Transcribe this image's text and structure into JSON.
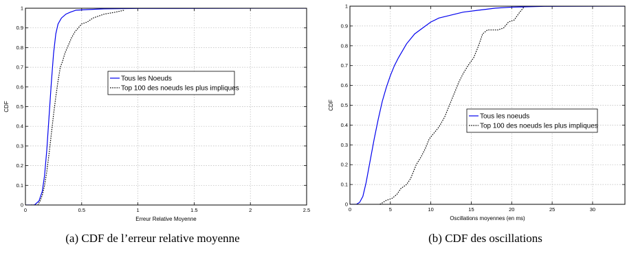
{
  "chart_data": [
    {
      "type": "line",
      "panel": "a",
      "title": "",
      "caption": "(a)  CDF de l’erreur relative moyenne",
      "xlabel": "Erreur Relative Moyenne",
      "ylabel": "CDF",
      "xlim": [
        0,
        2.5
      ],
      "ylim": [
        0,
        1
      ],
      "xticks": [
        "0",
        "0.5",
        "1",
        "1.5",
        "2",
        "2.5"
      ],
      "yticks": [
        "0",
        "0.1",
        "0.2",
        "0.3",
        "0.4",
        "0.5",
        "0.6",
        "0.7",
        "0.8",
        "0.9",
        "1"
      ],
      "grid": true,
      "legend_position": "center",
      "series": [
        {
          "name": "Tous les Noeuds",
          "color": "#0000ee",
          "style": "solid",
          "x": [
            0,
            0.08,
            0.12,
            0.15,
            0.17,
            0.19,
            0.21,
            0.23,
            0.25,
            0.27,
            0.29,
            0.32,
            0.36,
            0.4,
            0.45,
            0.55,
            0.7,
            1.0,
            2.5
          ],
          "y": [
            0,
            0.0,
            0.02,
            0.07,
            0.15,
            0.28,
            0.45,
            0.62,
            0.77,
            0.87,
            0.92,
            0.95,
            0.97,
            0.98,
            0.99,
            0.993,
            0.997,
            0.999,
            1.0
          ]
        },
        {
          "name": "Top 100 des noeuds les plus impliques",
          "color": "#000000",
          "style": "dotted",
          "x": [
            0.05,
            0.11,
            0.13,
            0.15,
            0.17,
            0.19,
            0.21,
            0.23,
            0.25,
            0.27,
            0.29,
            0.31,
            0.33,
            0.35,
            0.38,
            0.41,
            0.44,
            0.47,
            0.5,
            0.55,
            0.6,
            0.65,
            0.7,
            0.8,
            0.88
          ],
          "y": [
            0,
            0.0,
            0.02,
            0.05,
            0.1,
            0.17,
            0.26,
            0.36,
            0.46,
            0.55,
            0.63,
            0.7,
            0.73,
            0.77,
            0.81,
            0.85,
            0.88,
            0.9,
            0.92,
            0.93,
            0.95,
            0.96,
            0.97,
            0.98,
            0.99
          ]
        }
      ]
    },
    {
      "type": "line",
      "panel": "b",
      "title": "",
      "caption": "(b)  CDF des oscillations",
      "xlabel": "Oscillations moyennes (en ms)",
      "ylabel": "CDF",
      "xlim": [
        0,
        34
      ],
      "ylim": [
        0,
        1
      ],
      "xticks": [
        "0",
        "5",
        "10",
        "15",
        "20",
        "25",
        "30"
      ],
      "yticks": [
        "0",
        "0.1",
        "0.2",
        "0.3",
        "0.4",
        "0.5",
        "0.6",
        "0.7",
        "0.8",
        "0.9",
        "1"
      ],
      "grid": true,
      "legend_position": "center-right",
      "series": [
        {
          "name": "Tous les noeuds",
          "color": "#0000ee",
          "style": "solid",
          "x": [
            0,
            0.8,
            1.2,
            1.6,
            2.0,
            2.5,
            3.0,
            3.5,
            4.0,
            4.5,
            5.0,
            5.5,
            6.0,
            7.0,
            8.0,
            9.0,
            10.0,
            11.0,
            12.0,
            14.0,
            16.0,
            18.0,
            20.0,
            24.0,
            34.0
          ],
          "y": [
            0,
            0.0,
            0.01,
            0.04,
            0.11,
            0.22,
            0.33,
            0.43,
            0.52,
            0.59,
            0.65,
            0.7,
            0.74,
            0.81,
            0.86,
            0.89,
            0.92,
            0.94,
            0.95,
            0.97,
            0.98,
            0.99,
            0.995,
            0.999,
            1.0
          ]
        },
        {
          "name": "Top 100 des noeuds les plus impliques",
          "color": "#000000",
          "style": "dotted",
          "x": [
            3.7,
            4.5,
            5.2,
            5.8,
            6.3,
            7.0,
            7.5,
            8.2,
            8.8,
            9.3,
            9.8,
            10.4,
            11.0,
            11.7,
            12.3,
            12.9,
            13.5,
            14.0,
            14.6,
            15.3,
            15.9,
            16.4,
            17.0,
            17.7,
            18.3,
            19.0,
            19.6,
            20.3,
            21.0,
            21.6
          ],
          "y": [
            0,
            0.02,
            0.03,
            0.05,
            0.08,
            0.1,
            0.13,
            0.2,
            0.24,
            0.28,
            0.33,
            0.36,
            0.39,
            0.44,
            0.5,
            0.56,
            0.62,
            0.66,
            0.7,
            0.74,
            0.8,
            0.86,
            0.88,
            0.88,
            0.88,
            0.89,
            0.92,
            0.93,
            0.97,
            1.0
          ]
        }
      ]
    }
  ]
}
